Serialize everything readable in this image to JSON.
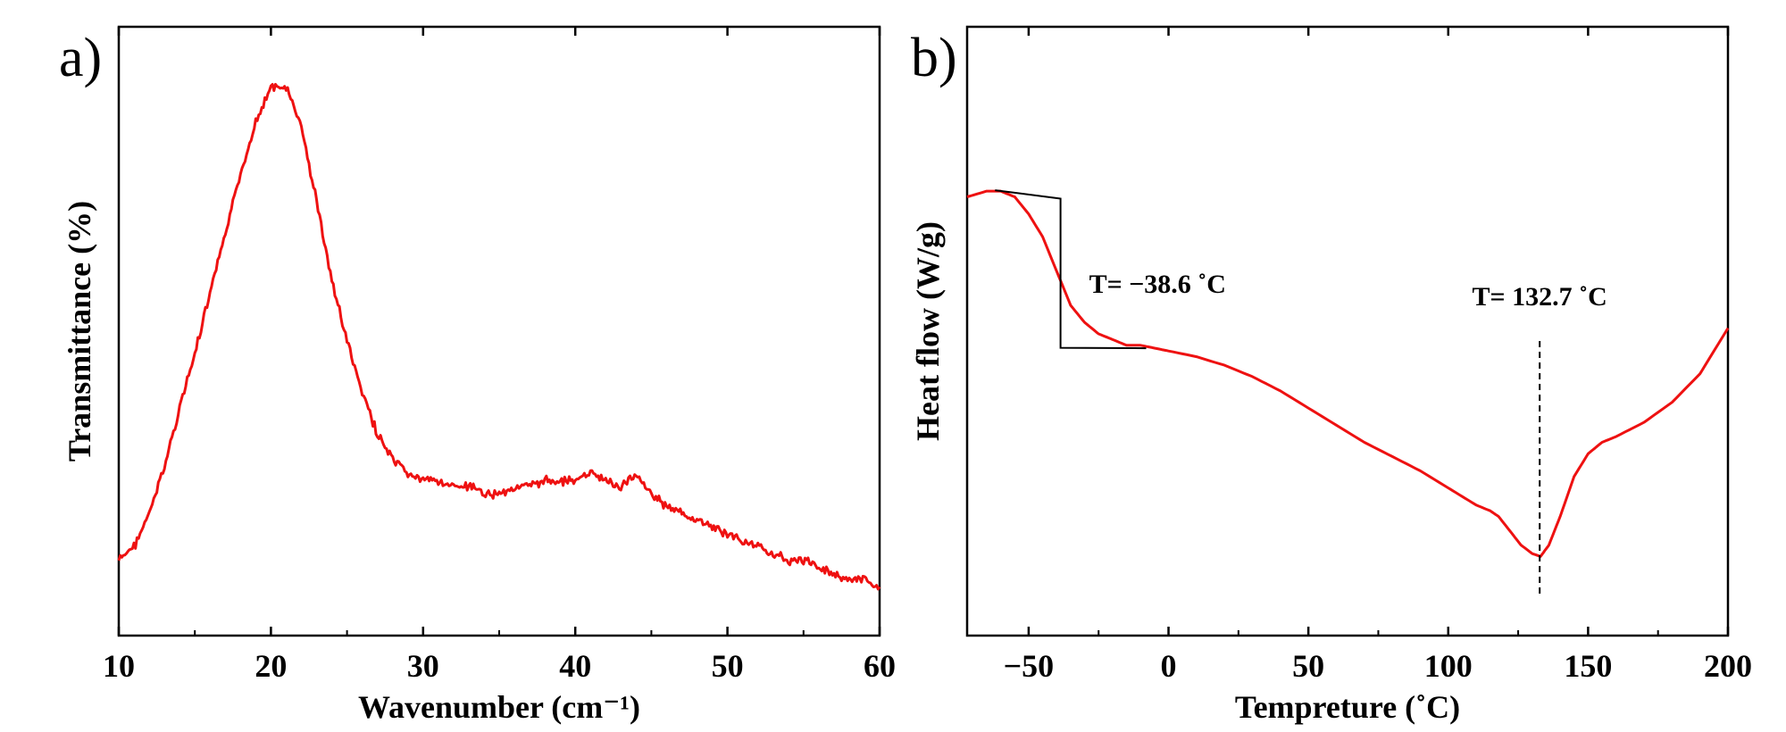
{
  "chart_data": [
    {
      "type": "line",
      "panel_label": "a)",
      "xlabel": "Wavenumber (cm⁻¹)",
      "ylabel": "Transmittance (%)",
      "xlim": [
        10,
        60
      ],
      "ylim": [
        0,
        100
      ],
      "x_ticks": [
        "10",
        "20",
        "30",
        "40",
        "50",
        "60"
      ],
      "y_ticks_shown": false,
      "line_color": "#ee1111",
      "series": [
        {
          "name": "Transmittance",
          "x": [
            10,
            11,
            12,
            13,
            14,
            15,
            16,
            17,
            18,
            19,
            20,
            21,
            22,
            23,
            24,
            25,
            26,
            27,
            28,
            29,
            30,
            31,
            32,
            33,
            34,
            35,
            36,
            37,
            38,
            39,
            40,
            41,
            42,
            43,
            44,
            45,
            46,
            47,
            48,
            49,
            50,
            51,
            52,
            53,
            54,
            55,
            56,
            57,
            58,
            59,
            60
          ],
          "values": [
            19,
            21,
            26,
            33,
            42,
            50,
            59,
            68,
            77,
            85,
            90,
            90,
            84,
            73,
            61,
            52,
            44,
            38,
            34,
            32,
            31,
            31,
            30,
            30,
            29,
            29,
            30,
            30,
            31,
            31,
            31,
            32,
            31,
            30,
            32,
            29,
            27,
            26,
            25,
            24,
            23,
            22,
            21,
            20,
            19,
            19,
            18,
            17,
            16,
            16,
            15
          ]
        }
      ]
    },
    {
      "type": "line",
      "panel_label": "b)",
      "xlabel": "Tempreture (˚C)",
      "ylabel": "Heat flow (W/g)",
      "xlim": [
        -72,
        200
      ],
      "ylim": [
        0,
        100
      ],
      "x_ticks": [
        "−50",
        "0",
        "50",
        "100",
        "150",
        "200"
      ],
      "y_ticks_shown": false,
      "line_color": "#ee1111",
      "series": [
        {
          "name": "Heat flow",
          "x": [
            -72,
            -65,
            -60,
            -55,
            -50,
            -45,
            -40,
            -35,
            -30,
            -25,
            -20,
            -15,
            -10,
            -5,
            0,
            10,
            20,
            30,
            40,
            50,
            60,
            70,
            80,
            90,
            100,
            105,
            110,
            115,
            118,
            122,
            126,
            130,
            133,
            136,
            140,
            145,
            150,
            155,
            160,
            170,
            180,
            190,
            200
          ],
          "values": [
            100,
            101,
            101,
            100,
            97,
            93,
            87,
            81,
            78,
            76,
            75,
            74,
            74,
            73.5,
            73,
            72,
            70.5,
            68.5,
            66,
            63,
            60,
            57,
            54.5,
            52,
            49,
            47.5,
            46,
            45,
            44,
            41.5,
            39,
            37.5,
            37,
            39,
            44,
            51,
            55,
            57,
            58,
            60.5,
            64,
            69,
            77
          ]
        }
      ],
      "annotations": [
        {
          "text": "T= −38.6 ˚C",
          "x": -38.6,
          "kind": "glass-transition tangent construction"
        },
        {
          "text": "T= 132.7 ˚C",
          "x": 132.7,
          "kind": "dashed vertical marker at minimum"
        }
      ]
    }
  ]
}
